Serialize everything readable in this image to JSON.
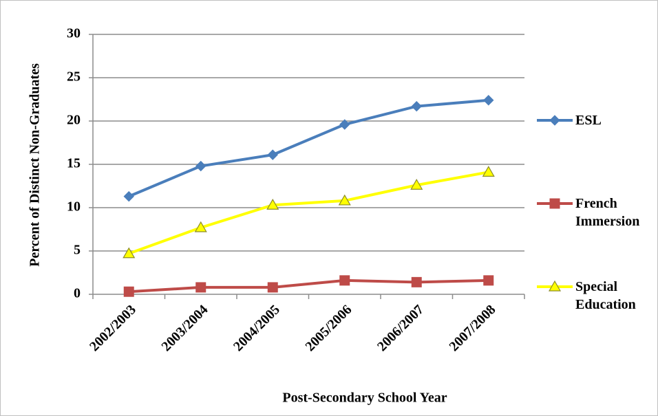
{
  "chart_data": {
    "type": "line",
    "x_label": "Post-Secondary School Year",
    "y_label": "Percent of Distinct Non-Graduates",
    "categories": [
      "2002/2003",
      "2003/2004",
      "2004/2005",
      "2005/2006",
      "2006/2007",
      "2007/2008"
    ],
    "series": [
      {
        "name": "ESL",
        "color": "#4a7ebb",
        "marker": "diamond",
        "values": [
          11.3,
          14.8,
          16.1,
          19.6,
          21.7,
          22.4
        ]
      },
      {
        "name": "French Immersion",
        "color": "#be4b48",
        "marker": "square",
        "values": [
          0.3,
          0.8,
          0.8,
          1.6,
          1.4,
          1.6
        ]
      },
      {
        "name": "Special Education",
        "color": "#ffff00",
        "marker": "triangle",
        "values": [
          4.7,
          7.7,
          10.3,
          10.8,
          12.6,
          14.1
        ]
      }
    ],
    "ylim": [
      0,
      30
    ],
    "yticks": [
      0,
      5,
      10,
      15,
      20,
      25,
      30
    ],
    "grid": true
  }
}
